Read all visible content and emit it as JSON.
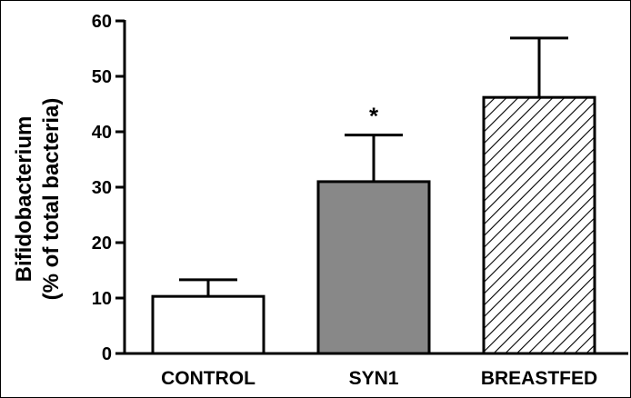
{
  "chart_data": {
    "type": "bar",
    "title": "",
    "xlabel": "",
    "ylabel_line1": "Bifidobacterium",
    "ylabel_line2": "(% of total bacteria)",
    "ylim": [
      0,
      60
    ],
    "yticks": [
      0,
      10,
      20,
      30,
      40,
      50,
      60
    ],
    "ytick_labels": [
      "0",
      "10",
      "20",
      "30",
      "40",
      "50",
      "60"
    ],
    "grid": false,
    "categories": [
      "CONTROL",
      "SYN1",
      "BREASTFED"
    ],
    "values": [
      10.3,
      31.0,
      46.2
    ],
    "error_upper": [
      13.3,
      39.4,
      56.9
    ],
    "fills": [
      "#ffffff",
      "#888888",
      "hatch"
    ],
    "annotations": [
      {
        "category": "SYN1",
        "text": "*"
      }
    ]
  }
}
